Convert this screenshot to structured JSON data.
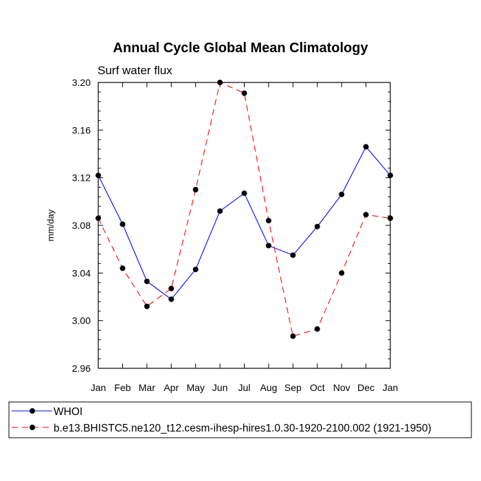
{
  "chart_data": {
    "type": "line",
    "title": "Annual Cycle Global Mean Climatology",
    "subtitle": "Surf water flux",
    "xlabel": "",
    "ylabel": "mm/day",
    "ylim": [
      2.96,
      3.2
    ],
    "yticks": [
      "3.20",
      "3.16",
      "3.12",
      "3.08",
      "3.04",
      "3.00",
      "2.96"
    ],
    "ytick_values": [
      3.2,
      3.16,
      3.12,
      3.08,
      3.04,
      3.0,
      2.96
    ],
    "categories": [
      "Jan",
      "Feb",
      "Mar",
      "Apr",
      "May",
      "Jun",
      "Jul",
      "Aug",
      "Sep",
      "Oct",
      "Nov",
      "Dec",
      "Jan"
    ],
    "series": [
      {
        "name": "WHOI",
        "color": "#0000ff",
        "dash": "solid",
        "values": [
          3.122,
          3.081,
          3.033,
          3.018,
          3.043,
          3.092,
          3.107,
          3.063,
          3.055,
          3.079,
          3.106,
          3.146,
          3.122
        ]
      },
      {
        "name": "b.e13.BHISTC5.ne120_t12.cesm-ihesp-hires1.0.30-1920-2100.002 (1921-1950)",
        "color": "#ff0000",
        "dash": "dashed",
        "values": [
          3.086,
          3.044,
          3.012,
          3.027,
          3.11,
          3.2,
          3.191,
          3.084,
          2.987,
          2.993,
          3.04,
          3.089,
          3.086
        ]
      }
    ],
    "legend_position": "bottom"
  }
}
